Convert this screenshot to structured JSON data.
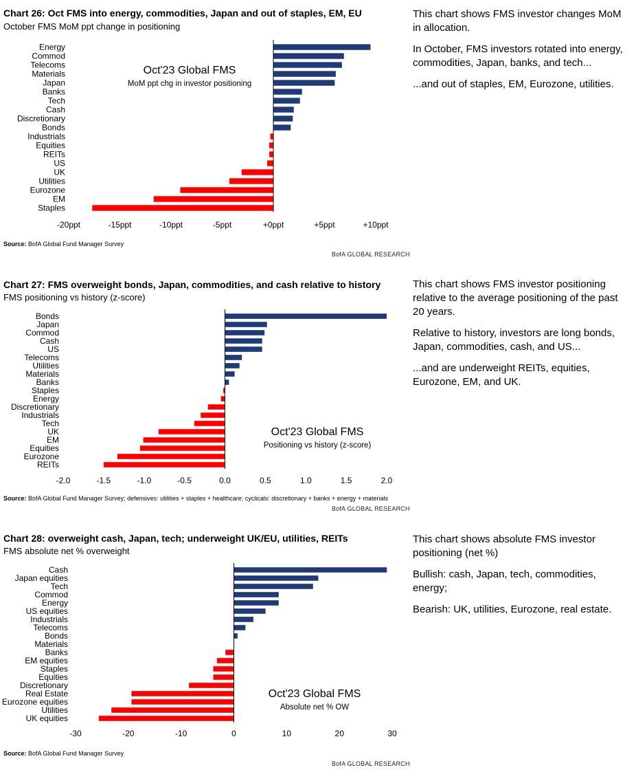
{
  "colors": {
    "positive": "#1f3a78",
    "negative": "#ff0000",
    "axis": "#000000"
  },
  "brand": "BofA GLOBAL RESEARCH",
  "source_label": "Source:",
  "panels": [
    {
      "title": "Chart 26: Oct FMS into energy, commodities, Japan and out of staples, EM, EU",
      "subtitle": "October FMS MoM ppt change in positioning",
      "source": "BofA Global Fund Manager Survey",
      "commentary": [
        "This chart shows FMS investor changes MoM in allocation.",
        "In October, FMS investors rotated into energy, commodities, Japan, banks, and tech...",
        "...and out of staples, EM, Eurozone, utilities."
      ]
    },
    {
      "title": "Chart 27: FMS overweight bonds, Japan, commodities, and cash relative to history",
      "subtitle": "FMS positioning vs history (z-score)",
      "source": "BofA Global Fund Manager Survey; defensives: utilities + staples + healthcare; cyclicals: discretionary + banks + energy + materials",
      "commentary": [
        "This chart shows FMS investor positioning relative to the average positioning of the past 20 years.",
        "Relative to history, investors are long bonds, Japan, commodities, cash, and US...",
        "...and are underweight REITs, equities, Eurozone, EM, and UK."
      ]
    },
    {
      "title": "Chart 28: overweight cash, Japan, tech; underweight UK/EU, utilities, REITs",
      "subtitle": "FMS absolute net % overweight",
      "source": "BofA Global Fund Manager Survey",
      "commentary": [
        "This chart shows absolute FMS investor positioning (net %)",
        "Bullish: cash, Japan, tech, commodities, energy;",
        "Bearish: UK, utilities, Eurozone, real estate."
      ]
    }
  ],
  "chart_data": [
    {
      "type": "bar",
      "orientation": "horizontal",
      "title": "Chart 26: Oct FMS into energy, commodities, Japan and out of staples, EM, EU",
      "annotation_title": "Oct'23 Global FMS",
      "annotation_subtitle": "MoM ppt chg in investor positioning",
      "categories": [
        "Energy",
        "Commod",
        "Telecoms",
        "Materials",
        "Japan",
        "Banks",
        "Tech",
        "Cash",
        "Discretionary",
        "Bonds",
        "Industrials",
        "Equities",
        "REITs",
        "US",
        "UK",
        "Utilities",
        "Eurozone",
        "EM",
        "Staples"
      ],
      "values": [
        9.5,
        6.9,
        6.7,
        6.1,
        6.0,
        2.8,
        2.6,
        2.0,
        1.9,
        1.7,
        -0.3,
        -0.4,
        -0.4,
        -0.6,
        -3.1,
        -4.3,
        -9.1,
        -11.7,
        -17.7
      ],
      "xlim": [
        -20,
        10
      ],
      "xticks": [
        -20,
        -15,
        -10,
        -5,
        0,
        5,
        10
      ],
      "xtick_labels": [
        "-20ppt",
        "-15ppt",
        "-10ppt",
        "-5ppt",
        "+0ppt",
        "+5ppt",
        "+10ppt"
      ],
      "grid": false
    },
    {
      "type": "bar",
      "orientation": "horizontal",
      "title": "Chart 27: FMS overweight bonds, Japan, commodities, and cash relative to history",
      "annotation_title": "Oct'23 Global FMS",
      "annotation_subtitle": "Positioning vs history (z-score)",
      "categories": [
        "Bonds",
        "Japan",
        "Commod",
        "Cash",
        "US",
        "Telecoms",
        "Utilities",
        "Materials",
        "Banks",
        "Staples",
        "Energy",
        "Discretionary",
        "Industrials",
        "Tech",
        "UK",
        "EM",
        "Equities",
        "Eurozone",
        "REITs"
      ],
      "values": [
        2.0,
        0.52,
        0.49,
        0.46,
        0.46,
        0.21,
        0.18,
        0.12,
        0.05,
        -0.02,
        -0.05,
        -0.21,
        -0.3,
        -0.38,
        -0.82,
        -1.01,
        -1.05,
        -1.33,
        -1.5
      ],
      "xlim": [
        -2.0,
        2.0
      ],
      "xticks": [
        -2.0,
        -1.5,
        -1.0,
        -0.5,
        0.0,
        0.5,
        1.0,
        1.5,
        2.0
      ],
      "xtick_labels": [
        "-2.0",
        "-1.5",
        "-1.0",
        "-0.5",
        "0.0",
        "0.5",
        "1.0",
        "1.5",
        "2.0"
      ],
      "grid": false
    },
    {
      "type": "bar",
      "orientation": "horizontal",
      "title": "Chart 28: overweight cash, Japan, tech; underweight UK/EU, utilities, REITs",
      "annotation_title": "Oct'23 Global FMS",
      "annotation_subtitle": "Absolute net % OW",
      "categories": [
        "Cash",
        "Japan equities",
        "Tech",
        "Commod",
        "Energy",
        "US equities",
        "Industrials",
        "Telecoms",
        "Bonds",
        "Materials",
        "Banks",
        "EM equities",
        "Staples",
        "Equities",
        "Discretionary",
        "Real Estate",
        "Eurozone equities",
        "Utilities",
        "UK equities"
      ],
      "values": [
        29,
        16,
        15,
        8.5,
        8.5,
        6,
        3.7,
        2.2,
        0.7,
        0,
        -1.6,
        -3.2,
        -3.9,
        -3.9,
        -8.5,
        -19.4,
        -19.4,
        -23.2,
        -25.6
      ],
      "xlim": [
        -30,
        30
      ],
      "xticks": [
        -30,
        -20,
        -10,
        0,
        10,
        20,
        30
      ],
      "xtick_labels": [
        "-30",
        "-20",
        "-10",
        "0",
        "10",
        "20",
        "30"
      ],
      "grid": false
    }
  ]
}
